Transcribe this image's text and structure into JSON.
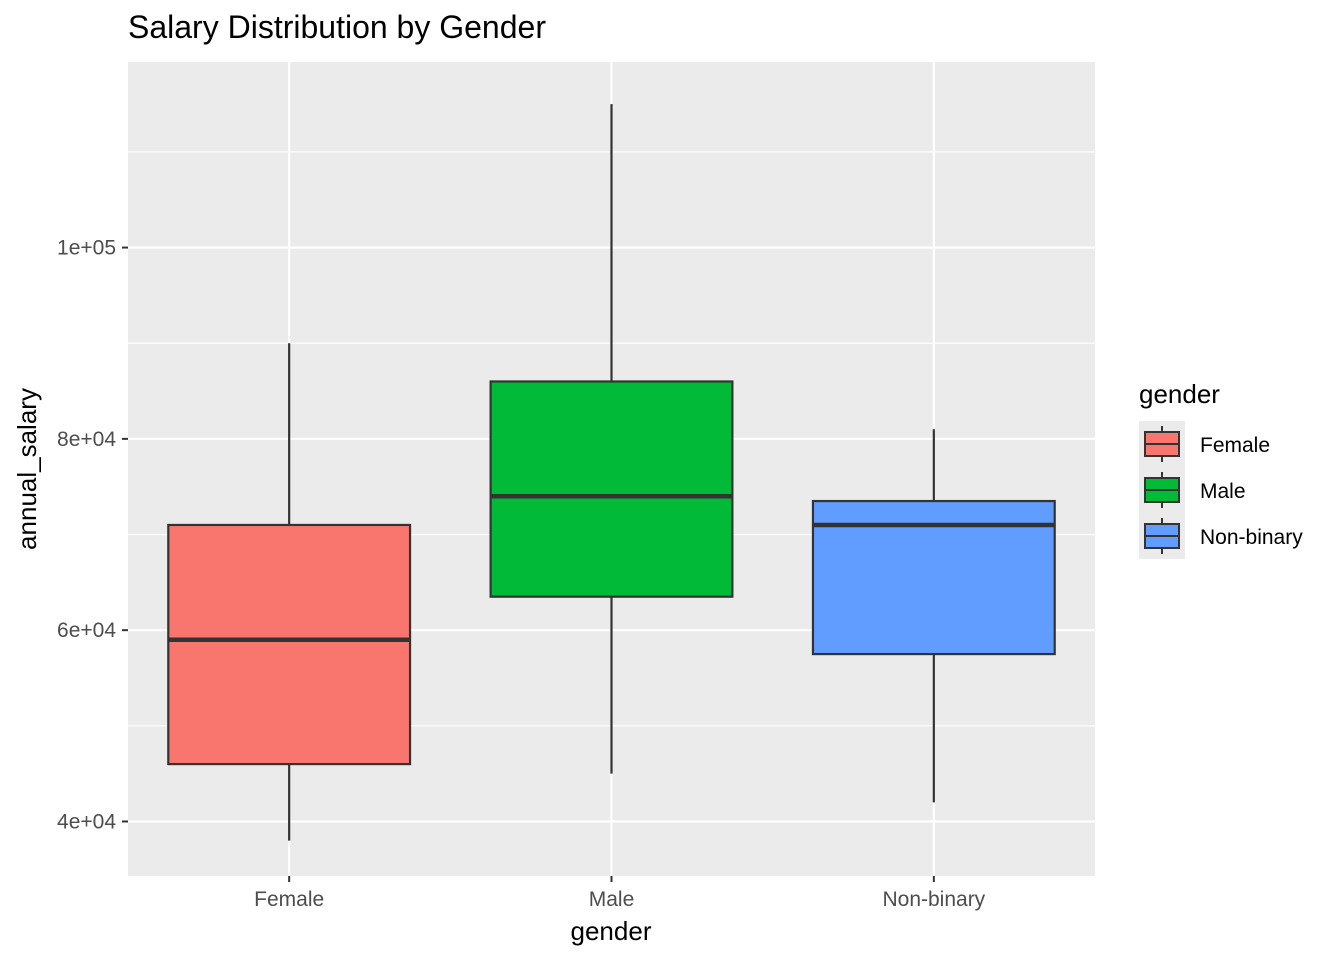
{
  "chart_data": {
    "type": "box",
    "title": "Salary Distribution by Gender",
    "xlabel": "gender",
    "ylabel": "annual_salary",
    "categories": [
      "Female",
      "Male",
      "Non-binary"
    ],
    "yticks": [
      {
        "value": 40000,
        "label": "4e+04"
      },
      {
        "value": 60000,
        "label": "6e+04"
      },
      {
        "value": 80000,
        "label": "8e+04"
      },
      {
        "value": 100000,
        "label": "1e+05"
      }
    ],
    "ylim": [
      34300,
      119400
    ],
    "grid": true,
    "legend": {
      "title": "gender",
      "position": "right",
      "entries": [
        "Female",
        "Male",
        "Non-binary"
      ]
    },
    "series": [
      {
        "name": "Female",
        "color": "#F8766D",
        "whisker_low": 38000,
        "q1": 46000,
        "median": 59000,
        "q3": 71000,
        "whisker_high": 90000
      },
      {
        "name": "Male",
        "color": "#00BA38",
        "whisker_low": 45000,
        "q1": 63500,
        "median": 74000,
        "q3": 86000,
        "whisker_high": 115000
      },
      {
        "name": "Non-binary",
        "color": "#619CFF",
        "whisker_low": 42000,
        "q1": 57500,
        "median": 71000,
        "q3": 73500,
        "whisker_high": 81000
      }
    ]
  }
}
